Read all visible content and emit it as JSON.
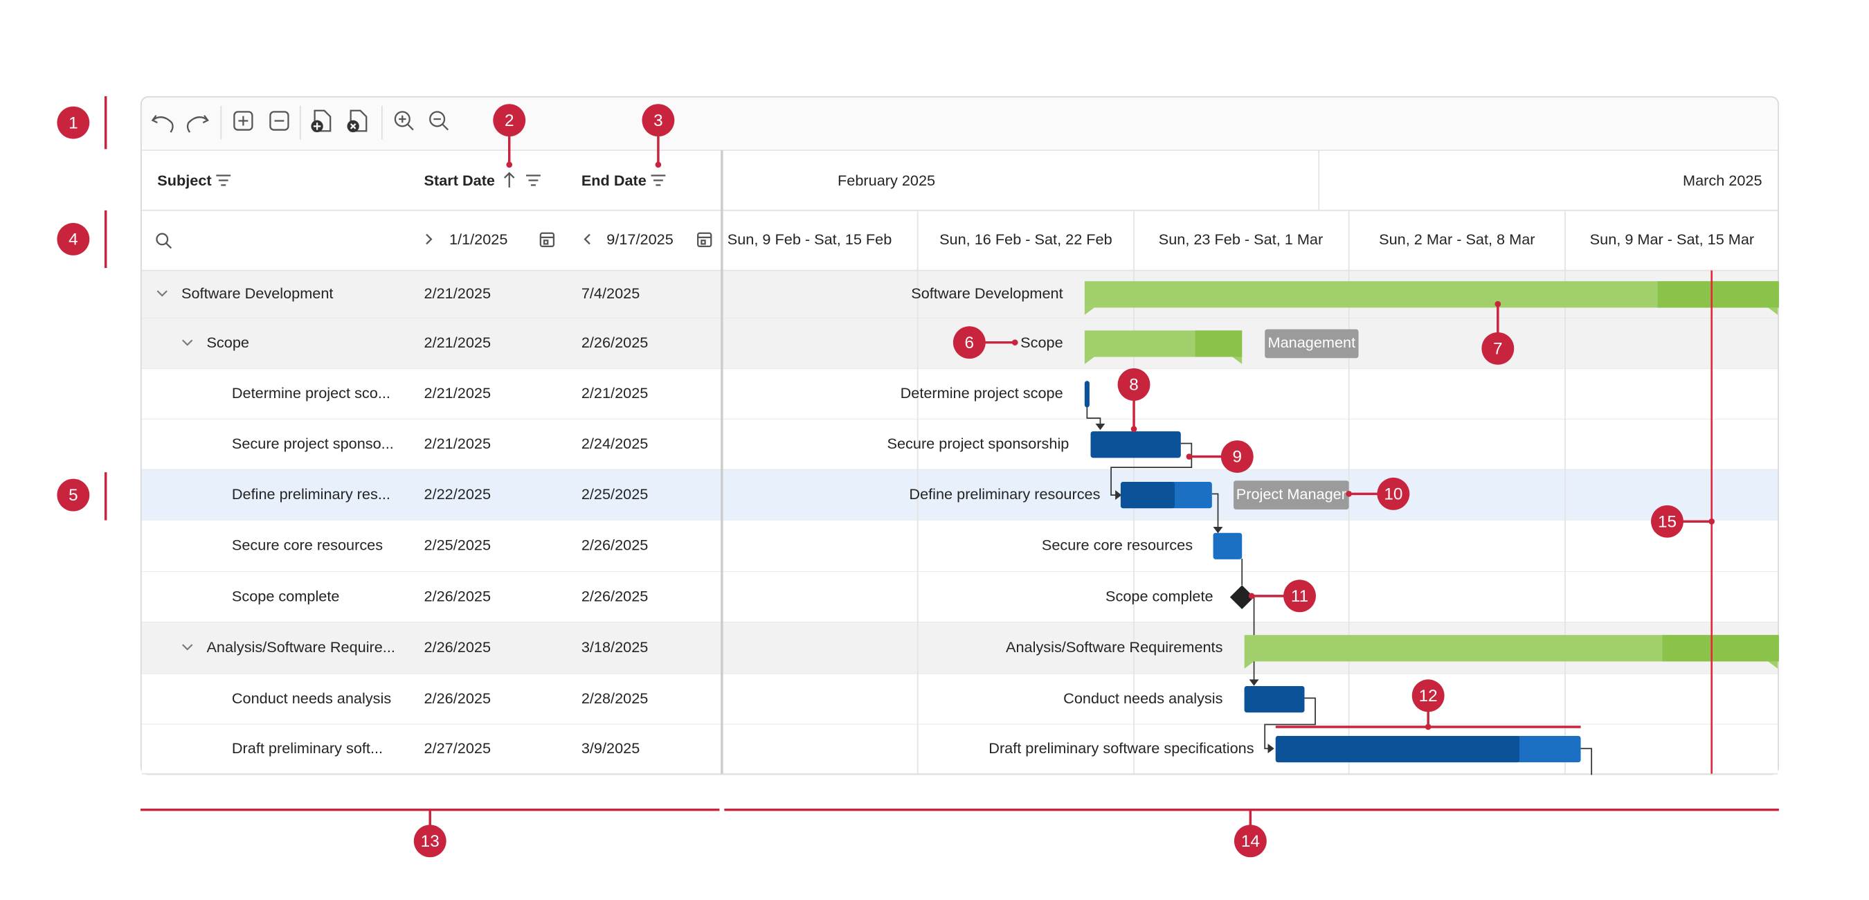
{
  "columns": [
    "Subject",
    "Start Date",
    "End Date"
  ],
  "filter": {
    "start": "1/1/2025",
    "end": "9/17/2025"
  },
  "timescale": {
    "months": [
      "February 2025",
      "March 2025"
    ],
    "weeks": [
      "Sun, 9 Feb - Sat, 15 Feb",
      "Sun, 16 Feb - Sat, 22 Feb",
      "Sun, 23 Feb - Sat, 1 Mar",
      "Sun, 2 Mar - Sat, 8 Mar",
      "Sun, 9 Mar - Sat, 15 Mar"
    ]
  },
  "rows": [
    {
      "subject": "Software Development",
      "start": "2/21/2025",
      "end": "7/4/2025",
      "title": "Software Development"
    },
    {
      "subject": "Scope",
      "start": "2/21/2025",
      "end": "2/26/2025",
      "title": "Scope",
      "resource": "Management"
    },
    {
      "subject": "Determine project sco...",
      "start": "2/21/2025",
      "end": "2/21/2025",
      "title": "Determine project scope"
    },
    {
      "subject": "Secure project sponso...",
      "start": "2/21/2025",
      "end": "2/24/2025",
      "title": "Secure project sponsorship"
    },
    {
      "subject": "Define preliminary res...",
      "start": "2/22/2025",
      "end": "2/25/2025",
      "title": "Define preliminary resources",
      "resource": "Project Manager"
    },
    {
      "subject": "Secure core resources",
      "start": "2/25/2025",
      "end": "2/26/2025",
      "title": "Secure core resources"
    },
    {
      "subject": "Scope complete",
      "start": "2/26/2025",
      "end": "2/26/2025",
      "title": "Scope complete"
    },
    {
      "subject": "Analysis/Software Require...",
      "start": "2/26/2025",
      "end": "3/18/2025",
      "title": "Analysis/Software Requirements"
    },
    {
      "subject": "Conduct needs analysis",
      "start": "2/26/2025",
      "end": "2/28/2025",
      "title": "Conduct needs analysis"
    },
    {
      "subject": "Draft preliminary soft...",
      "start": "2/27/2025",
      "end": "3/9/2025",
      "title": "Draft preliminary software specifications"
    }
  ],
  "callouts": [
    1,
    2,
    3,
    4,
    5,
    6,
    7,
    8,
    9,
    10,
    11,
    12,
    13,
    14,
    15
  ]
}
